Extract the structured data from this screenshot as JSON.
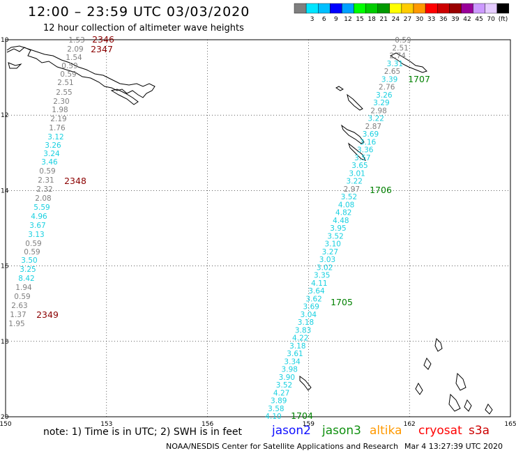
{
  "header": {
    "title": "12:00 – 23:59 UTC 03/03/2020",
    "subtitle": "12 hour collection of altimeter wave heights"
  },
  "legend": {
    "unit": "(ft)",
    "swatches": [
      {
        "color": "#7f7f7f",
        "label": ""
      },
      {
        "color": "#00e5ff",
        "label": "3"
      },
      {
        "color": "#00bfff",
        "label": "6"
      },
      {
        "color": "#0000ff",
        "label": "9"
      },
      {
        "color": "#00a0ff",
        "label": "12"
      },
      {
        "color": "#00ff00",
        "label": "15"
      },
      {
        "color": "#00cc00",
        "label": "18"
      },
      {
        "color": "#009900",
        "label": "21"
      },
      {
        "color": "#ffff00",
        "label": "24"
      },
      {
        "color": "#ffcc00",
        "label": "27"
      },
      {
        "color": "#ff9900",
        "label": "30"
      },
      {
        "color": "#ff0000",
        "label": "33"
      },
      {
        "color": "#cc0000",
        "label": "36"
      },
      {
        "color": "#990000",
        "label": "39"
      },
      {
        "color": "#990099",
        "label": "42"
      },
      {
        "color": "#cc99ff",
        "label": "45"
      },
      {
        "color": "#e5ccff",
        "label": "70"
      },
      {
        "color": "#000000",
        "label": ""
      }
    ]
  },
  "axes": {
    "x_ticks": [
      "150",
      "153",
      "156",
      "159",
      "162",
      "165"
    ],
    "y_ticks": [
      "10",
      "12",
      "14",
      "16",
      "18",
      "20"
    ]
  },
  "colors": {
    "gray_value": "#808080",
    "cyan_value": "#19d0e0",
    "time_dark_red": "#8b0000",
    "time_green": "#008000",
    "jason2": "#1010ff",
    "jason3": "#109010",
    "altika": "#ff9900",
    "cryosat": "#ff0000",
    "s3a": "#cc0000"
  },
  "tracks": {
    "west": [
      {
        "v": "1.53",
        "c": "gray"
      },
      {
        "v": "2.09",
        "c": "gray"
      },
      {
        "v": "1.54",
        "c": "gray"
      },
      {
        "v": "0.59",
        "c": "gray"
      },
      {
        "v": "0.59",
        "c": "gray"
      },
      {
        "v": "2.51",
        "c": "gray"
      },
      {
        "v": "2.55",
        "c": "gray"
      },
      {
        "v": "2.30",
        "c": "gray"
      },
      {
        "v": "1.98",
        "c": "gray"
      },
      {
        "v": "2.19",
        "c": "gray"
      },
      {
        "v": "1.76",
        "c": "gray"
      },
      {
        "v": "3.12",
        "c": "cyan"
      },
      {
        "v": "3.26",
        "c": "cyan"
      },
      {
        "v": "3.24",
        "c": "cyan"
      },
      {
        "v": "3.46",
        "c": "cyan"
      },
      {
        "v": "0.59",
        "c": "gray"
      },
      {
        "v": "2.31",
        "c": "gray"
      },
      {
        "v": "2.32",
        "c": "gray"
      },
      {
        "v": "2.08",
        "c": "gray"
      },
      {
        "v": "5.59",
        "c": "cyan"
      },
      {
        "v": "4.96",
        "c": "cyan"
      },
      {
        "v": "3.67",
        "c": "cyan"
      },
      {
        "v": "3.13",
        "c": "cyan"
      },
      {
        "v": "0.59",
        "c": "gray"
      },
      {
        "v": "0.59",
        "c": "gray"
      },
      {
        "v": "3.50",
        "c": "cyan"
      },
      {
        "v": "3.25",
        "c": "cyan"
      },
      {
        "v": "8.42",
        "c": "cyan"
      },
      {
        "v": "1.94",
        "c": "gray"
      },
      {
        "v": "0.59",
        "c": "gray"
      },
      {
        "v": "2.63",
        "c": "gray"
      },
      {
        "v": "1.37",
        "c": "gray"
      },
      {
        "v": "1.95",
        "c": "gray"
      }
    ],
    "east": [
      {
        "v": "0.59",
        "c": "gray"
      },
      {
        "v": "2.51",
        "c": "gray"
      },
      {
        "v": "2.74",
        "c": "gray"
      },
      {
        "v": "3.31",
        "c": "cyan"
      },
      {
        "v": "2.65",
        "c": "gray"
      },
      {
        "v": "3.39",
        "c": "cyan"
      },
      {
        "v": "2.76",
        "c": "gray"
      },
      {
        "v": "3.26",
        "c": "cyan"
      },
      {
        "v": "3.29",
        "c": "cyan"
      },
      {
        "v": "2.98",
        "c": "gray"
      },
      {
        "v": "3.22",
        "c": "cyan"
      },
      {
        "v": "2.87",
        "c": "gray"
      },
      {
        "v": "3.69",
        "c": "cyan"
      },
      {
        "v": "3.16",
        "c": "cyan"
      },
      {
        "v": "3.36",
        "c": "cyan"
      },
      {
        "v": "3.57",
        "c": "cyan"
      },
      {
        "v": "3.65",
        "c": "cyan"
      },
      {
        "v": "3.01",
        "c": "cyan"
      },
      {
        "v": "3.22",
        "c": "cyan"
      },
      {
        "v": "2.97",
        "c": "gray"
      },
      {
        "v": "3.52",
        "c": "cyan"
      },
      {
        "v": "4.08",
        "c": "cyan"
      },
      {
        "v": "4.82",
        "c": "cyan"
      },
      {
        "v": "4.48",
        "c": "cyan"
      },
      {
        "v": "3.95",
        "c": "cyan"
      },
      {
        "v": "3.52",
        "c": "cyan"
      },
      {
        "v": "3.10",
        "c": "cyan"
      },
      {
        "v": "3.27",
        "c": "cyan"
      },
      {
        "v": "3.03",
        "c": "cyan"
      },
      {
        "v": "3.02",
        "c": "cyan"
      },
      {
        "v": "3.35",
        "c": "cyan"
      },
      {
        "v": "4.11",
        "c": "cyan"
      },
      {
        "v": "3.64",
        "c": "cyan"
      },
      {
        "v": "3.62",
        "c": "cyan"
      },
      {
        "v": "3.69",
        "c": "cyan"
      },
      {
        "v": "3.04",
        "c": "cyan"
      },
      {
        "v": "3.18",
        "c": "cyan"
      },
      {
        "v": "3.83",
        "c": "cyan"
      },
      {
        "v": "4.22",
        "c": "cyan"
      },
      {
        "v": "3.18",
        "c": "cyan"
      },
      {
        "v": "3.61",
        "c": "cyan"
      },
      {
        "v": "3.34",
        "c": "cyan"
      },
      {
        "v": "3.98",
        "c": "cyan"
      },
      {
        "v": "3.90",
        "c": "cyan"
      },
      {
        "v": "3.52",
        "c": "cyan"
      },
      {
        "v": "4.27",
        "c": "cyan"
      },
      {
        "v": "3.89",
        "c": "cyan"
      },
      {
        "v": "3.58",
        "c": "cyan"
      },
      {
        "v": "4.10",
        "c": "cyan"
      }
    ]
  },
  "time_labels": {
    "west": [
      "2346",
      "2347",
      "2348",
      "2349"
    ],
    "east": [
      "1707",
      "1706",
      "1705",
      "1704"
    ]
  },
  "footer": {
    "note": "note: 1) Time is in UTC; 2) SWH is in feet",
    "satellites": {
      "jason2": "jason2",
      "jason3": "jason3",
      "altika": "altika",
      "cryosat": "cryosat",
      "s3a": "s3a"
    },
    "credit": "NOAA/NESDIS Center for Satellite Applications and Research",
    "timestamp": "Mar  4 13:27:39 UTC 2020"
  }
}
